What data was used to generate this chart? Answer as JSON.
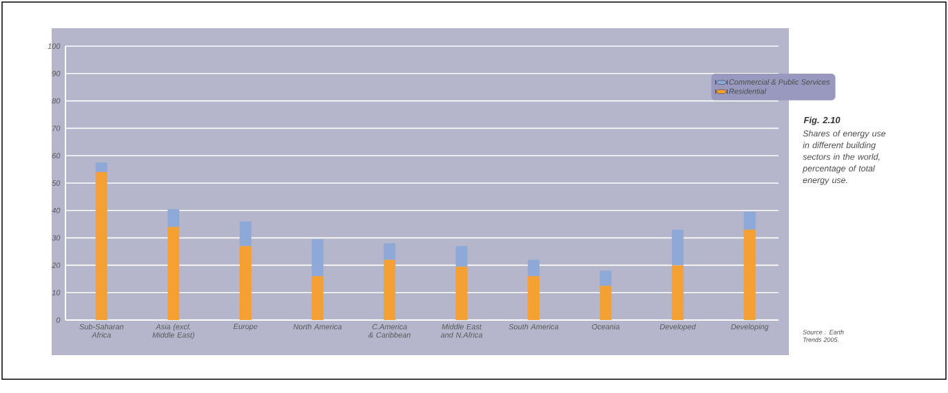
{
  "chart_data": {
    "type": "bar",
    "stacked": true,
    "title": "Fig. 2.10",
    "subtitle": "Shares of energy use in different building sectors in the world, percentage of total energy use.",
    "categories": [
      "Sub-Saharan Africa",
      "Asia (excl. Middle East)",
      "Europe",
      "North America",
      "C.America & Caribbean",
      "Middle East and N.Africa",
      "South America",
      "Oceania",
      "Developed",
      "Developing"
    ],
    "series": [
      {
        "name": "Residential",
        "color": "#f5a033",
        "values": [
          54,
          34,
          27,
          16,
          22,
          19.5,
          16,
          12.5,
          20,
          33
        ]
      },
      {
        "name": "Commercial & Public Services",
        "color": "#8ea8d8",
        "values": [
          3.5,
          6.5,
          9,
          13.5,
          6,
          7.5,
          6,
          5.5,
          13,
          6.5
        ]
      }
    ],
    "ylim": [
      0,
      100
    ],
    "yticks": [
      0,
      10,
      20,
      30,
      40,
      50,
      60,
      70,
      80,
      90,
      100
    ],
    "grid": "y",
    "legend": "top right",
    "annotations": [
      "Source : Earth Trends 2005."
    ]
  }
}
